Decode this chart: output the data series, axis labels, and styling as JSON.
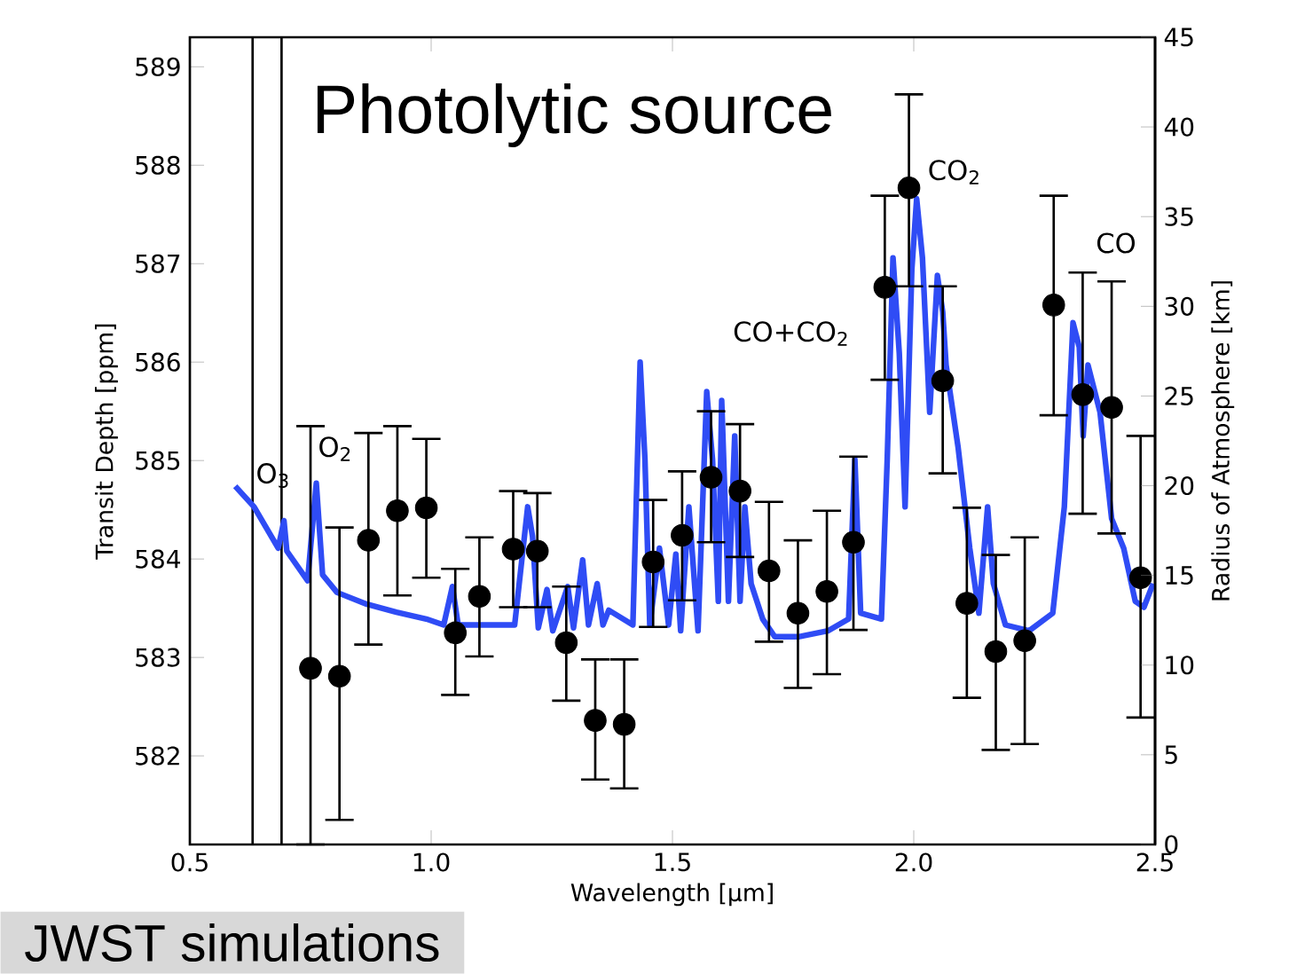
{
  "chart_data": {
    "type": "scatter",
    "xlabel": "Wavelength [μm]",
    "ylabel": "Transit Depth [ppm]",
    "y2label": "Radius of Atmosphere [km]",
    "xlim": [
      0.5,
      2.5
    ],
    "xticks": [
      0.5,
      {
        "value": 1,
        "label": "1.0"
      },
      1.5,
      {
        "value": 2,
        "label": "2.0"
      },
      2.5
    ],
    "ylim": [
      581.1,
      589.3
    ],
    "yticks": [
      582,
      583,
      584,
      585,
      586,
      587,
      588,
      589
    ],
    "y2lim": [
      0,
      45
    ],
    "y2ticks": [
      0,
      5,
      10,
      15,
      20,
      25,
      30,
      35,
      40,
      45
    ],
    "ref_lines": [
      {
        "axis": "x",
        "value": 0.63,
        "color": "#000000"
      },
      {
        "axis": "x",
        "value": 0.69,
        "color": "#000000"
      }
    ],
    "annotations": [
      "Photolytic source",
      "JWST simulations",
      "O$_{3}$",
      "O$_{2}$",
      "CO+CO$_{2}$",
      "CO$_{2}$",
      "CO"
    ],
    "series": [
      {
        "type": "line",
        "color": "#2f4cf5",
        "x": [
          0.594,
          0.633,
          0.683,
          0.695,
          0.701,
          0.744,
          0.762,
          0.775,
          0.805,
          0.867,
          0.928,
          0.99,
          1.026,
          1.044,
          1.056,
          1.111,
          1.173,
          1.2,
          1.21,
          1.222,
          1.24,
          1.252,
          1.283,
          1.295,
          1.314,
          1.326,
          1.344,
          1.356,
          1.368,
          1.418,
          1.433,
          1.443,
          1.453,
          1.473,
          1.492,
          1.507,
          1.517,
          1.534,
          1.553,
          1.571,
          1.583,
          1.595,
          1.602,
          1.616,
          1.629,
          1.64,
          1.65,
          1.663,
          1.687,
          1.712,
          1.761,
          1.822,
          1.865,
          1.878,
          1.89,
          1.933,
          1.945,
          1.957,
          1.97,
          1.982,
          1.996,
          2.006,
          2.018,
          2.033,
          2.049,
          2.06,
          2.067,
          2.092,
          2.116,
          2.135,
          2.153,
          2.165,
          2.19,
          2.239,
          2.288,
          2.312,
          2.33,
          2.343,
          2.351,
          2.361,
          2.386,
          2.41,
          2.435,
          2.459,
          2.477,
          2.496
        ],
        "values": [
          584.74,
          584.53,
          584.11,
          584.39,
          584.08,
          583.78,
          584.77,
          583.84,
          583.66,
          583.54,
          583.46,
          583.39,
          583.33,
          583.72,
          583.33,
          583.33,
          583.33,
          584.53,
          584.23,
          583.3,
          583.69,
          583.27,
          583.72,
          583.3,
          583.99,
          583.33,
          583.75,
          583.33,
          583.48,
          583.33,
          586.0,
          585.01,
          583.33,
          584.11,
          583.33,
          584.05,
          583.27,
          584.53,
          583.27,
          585.7,
          585.01,
          583.57,
          585.61,
          583.57,
          585.25,
          583.57,
          584.53,
          583.75,
          583.39,
          583.21,
          583.21,
          583.27,
          583.39,
          585.01,
          583.45,
          583.39,
          585.01,
          587.06,
          586.09,
          584.53,
          586.94,
          587.66,
          587.06,
          585.49,
          586.88,
          586.51,
          585.97,
          585.13,
          584.11,
          583.45,
          584.53,
          583.75,
          583.33,
          583.27,
          583.45,
          584.53,
          586.4,
          586.15,
          585.25,
          585.97,
          585.49,
          584.41,
          584.11,
          583.57,
          583.51,
          583.75
        ]
      },
      {
        "type": "scatter",
        "color": "#000000",
        "marker": "circle",
        "x": [
          0.75,
          0.81,
          0.87,
          0.93,
          0.99,
          1.05,
          1.1,
          1.17,
          1.22,
          1.28,
          1.34,
          1.4,
          1.46,
          1.52,
          1.58,
          1.64,
          1.7,
          1.76,
          1.82,
          1.875,
          1.94,
          1.99,
          2.06,
          2.11,
          2.17,
          2.23,
          2.29,
          2.35,
          2.41,
          2.47
        ],
        "values": [
          582.89,
          582.81,
          584.19,
          584.49,
          584.52,
          583.25,
          583.62,
          584.1,
          584.08,
          583.15,
          582.36,
          582.32,
          583.97,
          584.24,
          584.83,
          584.69,
          583.88,
          583.45,
          583.67,
          584.17,
          586.76,
          587.77,
          585.81,
          583.55,
          583.06,
          583.17,
          586.58,
          585.67,
          585.54,
          583.81
        ],
        "errors": [
          [
            581.1,
            585.35
          ],
          [
            581.35,
            584.32
          ],
          [
            583.13,
            585.28
          ],
          [
            583.63,
            585.35
          ],
          [
            583.81,
            585.22
          ],
          [
            582.62,
            583.9
          ],
          [
            583.01,
            584.22
          ],
          [
            583.51,
            584.69
          ],
          [
            583.51,
            584.67
          ],
          [
            582.56,
            583.72
          ],
          [
            581.76,
            582.98
          ],
          [
            581.67,
            582.98
          ],
          [
            583.31,
            584.6
          ],
          [
            583.58,
            584.89
          ],
          [
            584.17,
            585.5
          ],
          [
            584.02,
            585.37
          ],
          [
            583.16,
            584.58
          ],
          [
            582.69,
            584.19
          ],
          [
            582.83,
            584.49
          ],
          [
            583.28,
            585.04
          ],
          [
            585.82,
            587.69
          ],
          [
            586.77,
            588.72
          ],
          [
            584.87,
            586.77
          ],
          [
            582.59,
            584.52
          ],
          [
            582.06,
            584.04
          ],
          [
            582.12,
            584.22
          ],
          [
            585.46,
            587.69
          ],
          [
            584.46,
            586.91
          ],
          [
            584.26,
            586.82
          ],
          [
            582.39,
            585.25
          ]
        ]
      }
    ]
  }
}
